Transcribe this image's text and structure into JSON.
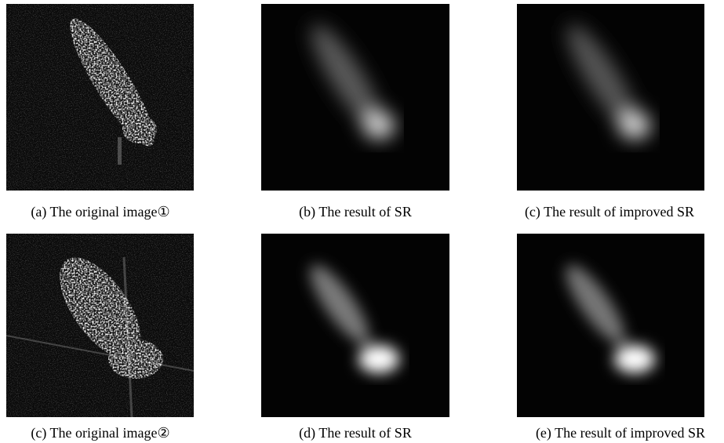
{
  "panels": [
    {
      "caption": "(a) The original image①"
    },
    {
      "caption": "(b) The result of SR"
    },
    {
      "caption": "(c) The result of improved SR"
    },
    {
      "caption": "(c) The original image②"
    },
    {
      "caption": "(d) The result of SR"
    },
    {
      "caption": "(e) The result of improved SR"
    }
  ]
}
